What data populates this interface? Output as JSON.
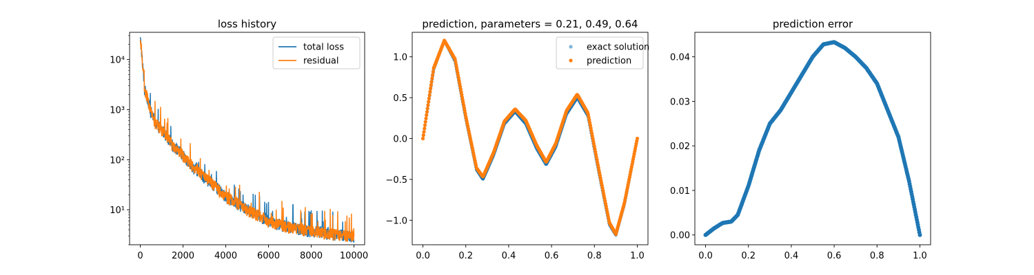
{
  "colors": {
    "blue": "#1f77b4",
    "orange": "#ff7f0e",
    "light_blue": "#7fb5da"
  },
  "chart_data": [
    {
      "type": "line",
      "title": "loss history",
      "xlabel": "",
      "ylabel": "",
      "yscale": "log",
      "xlim": [
        -500,
        10500
      ],
      "ylim": [
        2.0,
        35000
      ],
      "xticks": [
        0,
        2000,
        4000,
        6000,
        8000,
        10000
      ],
      "xtick_labels": [
        "0",
        "2000",
        "4000",
        "6000",
        "8000",
        "10000"
      ],
      "yticks": [
        10,
        100,
        1000,
        10000
      ],
      "ytick_labels": [
        "10¹",
        "10²",
        "10³",
        "10⁴"
      ],
      "legend_position": "top-right",
      "grid": false,
      "series": [
        {
          "name": "total loss",
          "color": "#1f77b4",
          "x": [
            0,
            100,
            200,
            300,
            400,
            500,
            700,
            1000,
            1500,
            2000,
            2500,
            3000,
            3500,
            4000,
            5000,
            6000,
            7000,
            8000,
            9000,
            10000
          ],
          "y": [
            25000,
            8000,
            2500,
            2000,
            1300,
            900,
            550,
            400,
            200,
            120,
            70,
            45,
            30,
            18,
            10,
            6,
            4.5,
            3.8,
            3.3,
            3.0
          ]
        },
        {
          "name": "residual",
          "color": "#ff7f0e",
          "x": [
            0,
            100,
            200,
            300,
            400,
            500,
            700,
            1000,
            1500,
            2000,
            2500,
            3000,
            3500,
            4000,
            5000,
            6000,
            7000,
            8000,
            9000,
            10000
          ],
          "y": [
            25000,
            8000,
            2500,
            2000,
            1300,
            900,
            550,
            400,
            200,
            120,
            70,
            45,
            30,
            18,
            10,
            6,
            4.5,
            3.8,
            3.3,
            3.0
          ]
        }
      ]
    },
    {
      "type": "scatter",
      "title": "prediction, parameters = 0.21, 0.49, 0.64",
      "xlabel": "",
      "ylabel": "",
      "xlim": [
        -0.05,
        1.05
      ],
      "ylim": [
        -1.3,
        1.3
      ],
      "xticks": [
        0.0,
        0.2,
        0.4,
        0.6,
        0.8,
        1.0
      ],
      "xtick_labels": [
        "0.0",
        "0.2",
        "0.4",
        "0.6",
        "0.8",
        "1.0"
      ],
      "yticks": [
        -1.0,
        -0.5,
        0.0,
        0.5,
        1.0
      ],
      "ytick_labels": [
        "−1.0",
        "−0.5",
        "0.0",
        "0.5",
        "1.0"
      ],
      "legend_position": "top-right",
      "grid": false,
      "series": [
        {
          "name": "exact solution",
          "color": "#1f77b4",
          "x": [
            0.0,
            0.05,
            0.1,
            0.15,
            0.2,
            0.25,
            0.28,
            0.33,
            0.38,
            0.43,
            0.48,
            0.53,
            0.575,
            0.62,
            0.67,
            0.72,
            0.77,
            0.82,
            0.87,
            0.9,
            0.94,
            1.0
          ],
          "y": [
            0.0,
            0.85,
            1.2,
            0.95,
            0.25,
            -0.38,
            -0.5,
            -0.2,
            0.18,
            0.33,
            0.18,
            -0.12,
            -0.32,
            -0.1,
            0.3,
            0.5,
            0.28,
            -0.4,
            -1.05,
            -1.18,
            -0.8,
            0.0
          ]
        },
        {
          "name": "prediction",
          "color": "#ff7f0e",
          "x": [
            0.0,
            0.05,
            0.1,
            0.15,
            0.2,
            0.25,
            0.28,
            0.33,
            0.38,
            0.43,
            0.48,
            0.53,
            0.575,
            0.62,
            0.67,
            0.72,
            0.77,
            0.82,
            0.87,
            0.9,
            0.94,
            1.0
          ],
          "y": [
            0.0,
            0.86,
            1.2,
            0.97,
            0.27,
            -0.36,
            -0.47,
            -0.17,
            0.21,
            0.36,
            0.22,
            -0.08,
            -0.29,
            -0.06,
            0.34,
            0.54,
            0.31,
            -0.37,
            -1.03,
            -1.17,
            -0.79,
            0.0
          ]
        }
      ]
    },
    {
      "type": "scatter",
      "title": "prediction error",
      "xlabel": "",
      "ylabel": "",
      "xlim": [
        -0.05,
        1.05
      ],
      "ylim": [
        -0.0022,
        0.0455
      ],
      "xticks": [
        0.0,
        0.2,
        0.4,
        0.6,
        0.8,
        1.0
      ],
      "xtick_labels": [
        "0.0",
        "0.2",
        "0.4",
        "0.6",
        "0.8",
        "1.0"
      ],
      "yticks": [
        0.0,
        0.01,
        0.02,
        0.03,
        0.04
      ],
      "ytick_labels": [
        "0.00",
        "0.01",
        "0.02",
        "0.03",
        "0.04"
      ],
      "legend_position": "",
      "grid": false,
      "series": [
        {
          "color": "#1f77b4",
          "x": [
            0.0,
            0.04,
            0.08,
            0.12,
            0.15,
            0.2,
            0.25,
            0.3,
            0.35,
            0.4,
            0.45,
            0.5,
            0.55,
            0.6,
            0.65,
            0.7,
            0.75,
            0.8,
            0.85,
            0.9,
            0.95,
            1.0
          ],
          "y": [
            0.0,
            0.0015,
            0.0027,
            0.003,
            0.0045,
            0.011,
            0.019,
            0.025,
            0.028,
            0.032,
            0.036,
            0.04,
            0.0428,
            0.0433,
            0.042,
            0.04,
            0.0375,
            0.034,
            0.028,
            0.022,
            0.012,
            0.0
          ]
        }
      ]
    }
  ]
}
